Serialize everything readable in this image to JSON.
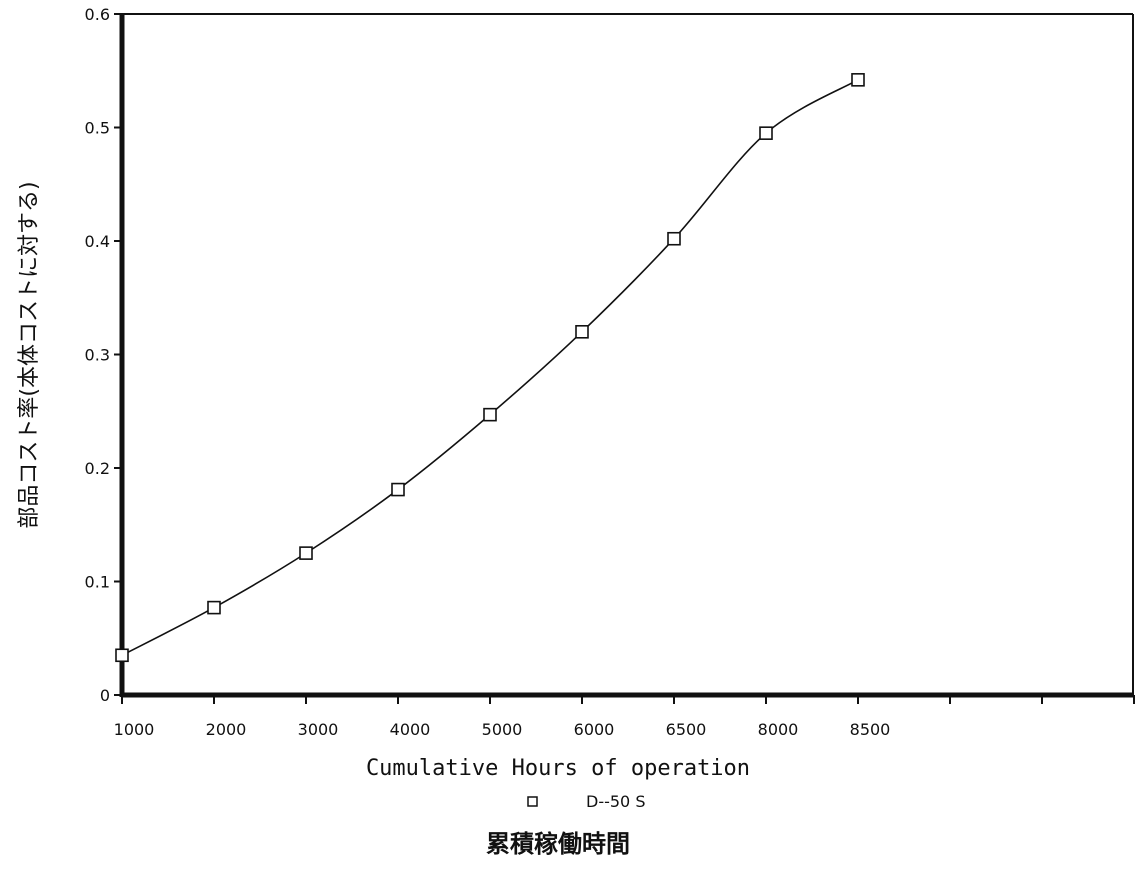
{
  "chart_data": {
    "type": "line",
    "categories": [
      "1000",
      "2000",
      "3000",
      "4000",
      "5000",
      "6000",
      "6500",
      "8000",
      "8500"
    ],
    "extra_x_ticks": 3,
    "series": [
      {
        "name": "D--50 S",
        "values": [
          0.035,
          0.077,
          0.125,
          0.181,
          0.247,
          0.32,
          0.402,
          0.495,
          0.542
        ],
        "marker": "square",
        "color": "#111111"
      }
    ],
    "y_ticks": [
      "0",
      "0.1",
      "0.2",
      "0.3",
      "0.4",
      "0.5",
      "0.6"
    ],
    "ylim": [
      0,
      0.6
    ],
    "xlabel": "Cumulative Hours of operation",
    "ylabel": "部品コスト率(本体コストに対する)",
    "caption": "累積稼働時間",
    "legend_placement": "bottom-center",
    "grid": false
  }
}
